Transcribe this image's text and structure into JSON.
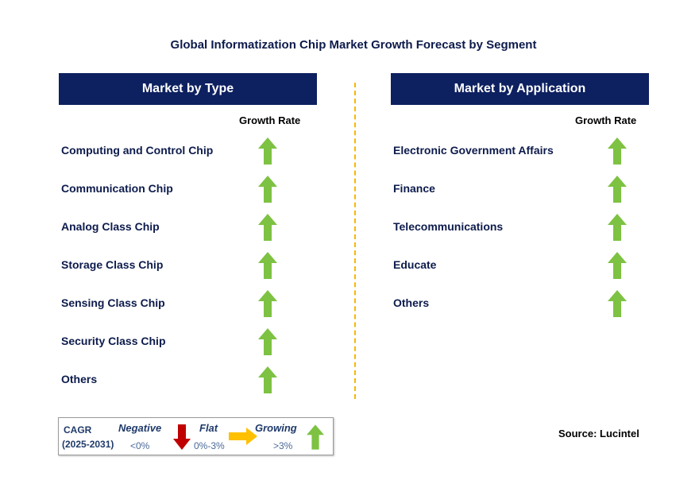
{
  "title": "Global Informatization Chip Market Growth Forecast by Segment",
  "left_panel": {
    "header": "Market by Type",
    "column_label": "Growth Rate",
    "rows": [
      {
        "label": "Computing and Control Chip",
        "trend": "growing"
      },
      {
        "label": "Communication Chip",
        "trend": "growing"
      },
      {
        "label": "Analog Class Chip",
        "trend": "growing"
      },
      {
        "label": "Storage Class Chip",
        "trend": "growing"
      },
      {
        "label": "Sensing Class Chip",
        "trend": "growing"
      },
      {
        "label": "Security Class Chip",
        "trend": "growing"
      },
      {
        "label": "Others",
        "trend": "growing"
      }
    ]
  },
  "right_panel": {
    "header": "Market by Application",
    "column_label": "Growth Rate",
    "rows": [
      {
        "label": "Electronic Government Affairs",
        "trend": "growing"
      },
      {
        "label": "Finance",
        "trend": "growing"
      },
      {
        "label": "Telecommunications",
        "trend": "growing"
      },
      {
        "label": "Educate",
        "trend": "growing"
      },
      {
        "label": "Others",
        "trend": "growing"
      }
    ]
  },
  "legend": {
    "cagr_label": "CAGR",
    "years": "(2025-2031)",
    "negative": {
      "label": "Negative",
      "value": "<0%",
      "icon": "down-arrow-icon",
      "color": "#c00000"
    },
    "flat": {
      "label": "Flat",
      "value": "0%-3%",
      "icon": "right-arrow-icon",
      "color": "#ffc000"
    },
    "growing": {
      "label": "Growing",
      "value": ">3%",
      "icon": "up-arrow-icon",
      "color": "#7dc242"
    }
  },
  "source": "Source: Lucintel",
  "colors": {
    "header_bg": "#0d2060",
    "divider": "#f5b800",
    "growing_arrow": "#7dc242"
  }
}
